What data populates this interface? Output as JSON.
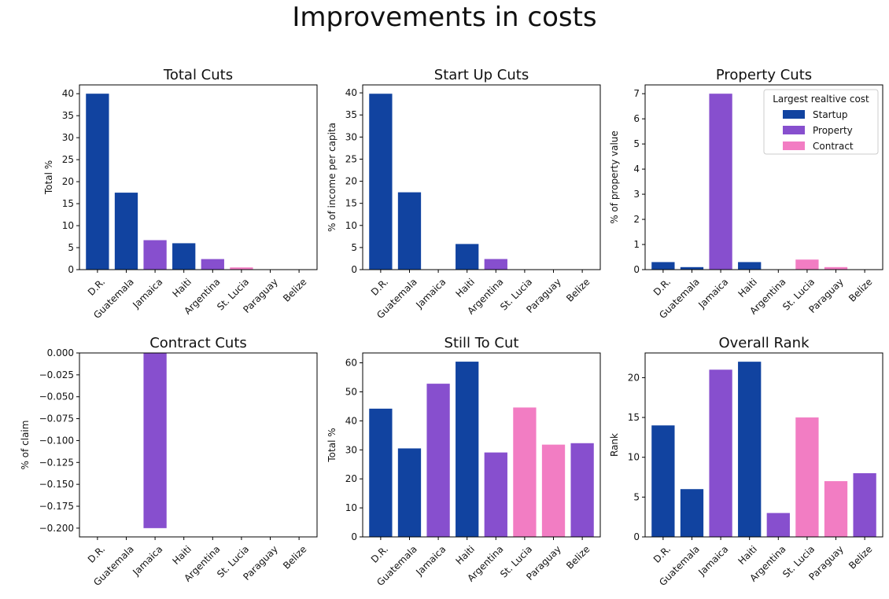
{
  "figure": {
    "title": "Improvements in costs"
  },
  "colors": {
    "startup": "#1143a0",
    "property": "#874fce",
    "contract": "#f27dc3"
  },
  "chart_data": [
    {
      "type": "bar",
      "title": "Total Cuts",
      "ylabel": "Total %",
      "xlabel": "",
      "categories": [
        "D.R.",
        "Guatemala",
        "Jamaica",
        "Haiti",
        "Argentina",
        "St. Lucia",
        "Paraguay",
        "Belize"
      ],
      "values": [
        40.0,
        17.5,
        6.7,
        6.0,
        2.4,
        0.5,
        0,
        0
      ],
      "bar_color_keys": [
        "startup",
        "startup",
        "property",
        "startup",
        "property",
        "contract",
        "contract",
        "property"
      ],
      "yticks": [
        "0",
        "5",
        "10",
        "15",
        "20",
        "25",
        "30",
        "35",
        "40"
      ],
      "ylim": [
        0,
        42
      ]
    },
    {
      "type": "bar",
      "title": "Start Up Cuts",
      "ylabel": "% of income per capita",
      "xlabel": "",
      "categories": [
        "D.R.",
        "Guatemala",
        "Jamaica",
        "Haiti",
        "Argentina",
        "St. Lucia",
        "Paraguay",
        "Belize"
      ],
      "values": [
        39.8,
        17.5,
        0,
        5.8,
        2.4,
        0,
        0,
        0
      ],
      "bar_color_keys": [
        "startup",
        "startup",
        "property",
        "startup",
        "property",
        "contract",
        "contract",
        "property"
      ],
      "yticks": [
        "0",
        "5",
        "10",
        "15",
        "20",
        "25",
        "30",
        "35",
        "40"
      ],
      "ylim": [
        0,
        41.8
      ]
    },
    {
      "type": "bar",
      "title": "Property Cuts",
      "ylabel": "% of property value",
      "xlabel": "",
      "categories": [
        "D.R.",
        "Guatemala",
        "Jamaica",
        "Haiti",
        "Argentina",
        "St. Lucia",
        "Paraguay",
        "Belize"
      ],
      "values": [
        0.3,
        0.1,
        7.0,
        0.3,
        0,
        0.4,
        0.1,
        0
      ],
      "bar_color_keys": [
        "startup",
        "startup",
        "property",
        "startup",
        "property",
        "contract",
        "contract",
        "property"
      ],
      "yticks": [
        "0",
        "1",
        "2",
        "3",
        "4",
        "5",
        "6",
        "7"
      ],
      "ylim": [
        0,
        7.35
      ],
      "legend": {
        "title": "Largest realtive cost",
        "placement": "top-right",
        "entries": [
          {
            "label": "Startup",
            "color_key": "startup"
          },
          {
            "label": "Property",
            "color_key": "property"
          },
          {
            "label": "Contract",
            "color_key": "contract"
          }
        ]
      }
    },
    {
      "type": "bar",
      "title": "Contract Cuts",
      "ylabel": "% of claim",
      "xlabel": "",
      "categories": [
        "D.R.",
        "Guatemala",
        "Jamaica",
        "Haiti",
        "Argentina",
        "St. Lucia",
        "Paraguay",
        "Belize"
      ],
      "values": [
        0,
        0,
        -0.2,
        0,
        0,
        0,
        0,
        0
      ],
      "bar_color_keys": [
        "startup",
        "startup",
        "property",
        "startup",
        "property",
        "contract",
        "contract",
        "property"
      ],
      "yticks": [
        "0.000",
        "−0.025",
        "−0.050",
        "−0.075",
        "−0.100",
        "−0.125",
        "−0.150",
        "−0.175",
        "−0.200"
      ],
      "ytick_values": [
        0,
        -0.025,
        -0.05,
        -0.075,
        -0.1,
        -0.125,
        -0.15,
        -0.175,
        -0.2
      ],
      "ylim": [
        -0.21,
        0
      ]
    },
    {
      "type": "bar",
      "title": "Still To Cut",
      "ylabel": "Total %",
      "xlabel": "",
      "categories": [
        "D.R.",
        "Guatemala",
        "Jamaica",
        "Haiti",
        "Argentina",
        "St. Lucia",
        "Paraguay",
        "Belize"
      ],
      "values": [
        44.2,
        30.5,
        52.8,
        60.4,
        29.1,
        44.6,
        31.8,
        32.3
      ],
      "bar_color_keys": [
        "startup",
        "startup",
        "property",
        "startup",
        "property",
        "contract",
        "contract",
        "property"
      ],
      "yticks": [
        "0",
        "10",
        "20",
        "30",
        "40",
        "50",
        "60"
      ],
      "ylim": [
        0,
        63.4
      ]
    },
    {
      "type": "bar",
      "title": "Overall Rank",
      "ylabel": "Rank",
      "xlabel": "",
      "categories": [
        "D.R.",
        "Guatemala",
        "Jamaica",
        "Haiti",
        "Argentina",
        "St. Lucia",
        "Paraguay",
        "Belize"
      ],
      "values": [
        14,
        6,
        21,
        22,
        3,
        15,
        7,
        8
      ],
      "bar_color_keys": [
        "startup",
        "startup",
        "property",
        "startup",
        "property",
        "contract",
        "contract",
        "property"
      ],
      "yticks": [
        "0",
        "5",
        "10",
        "15",
        "20"
      ],
      "ylim": [
        0,
        23.1
      ]
    }
  ]
}
